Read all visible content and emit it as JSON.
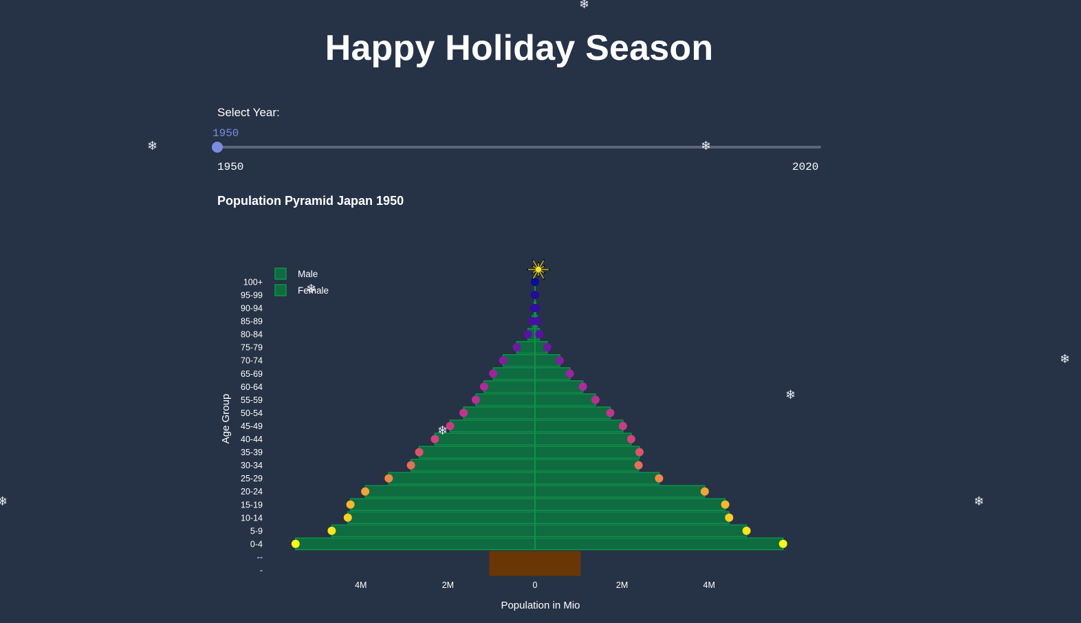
{
  "page": {
    "title": "Happy Holiday Season"
  },
  "slider": {
    "label": "Select Year:",
    "value": "1950",
    "min_label": "1950",
    "max_label": "2020",
    "position_fraction": 0.0
  },
  "chart_heading": "Population Pyramid Japan 1950",
  "chart_data": {
    "type": "bar",
    "orientation": "horizontal",
    "title": "Population Pyramid Japan 1950",
    "xlabel": "Population in Mio",
    "ylabel": "Age Group",
    "xlim": [
      -5.9,
      5.9
    ],
    "x_ticks": [
      {
        "value": -4,
        "label": "4M"
      },
      {
        "value": -2,
        "label": "2M"
      },
      {
        "value": 0,
        "label": "0"
      },
      {
        "value": 2,
        "label": "2M"
      },
      {
        "value": 4,
        "label": "4M"
      }
    ],
    "categories": [
      "-",
      "--",
      "0-4",
      "5-9",
      "10-14",
      "15-19",
      "20-24",
      "25-29",
      "30-34",
      "35-39",
      "40-44",
      "45-49",
      "50-54",
      "55-59",
      "60-64",
      "65-69",
      "70-74",
      "75-79",
      "80-84",
      "85-89",
      "90-94",
      "95-99",
      "100+"
    ],
    "series": [
      {
        "name": "Male",
        "values": [
          null,
          null,
          -5.5,
          -4.67,
          -4.3,
          -4.24,
          -3.9,
          -3.36,
          -2.85,
          -2.66,
          -2.3,
          -1.95,
          -1.64,
          -1.36,
          -1.17,
          -0.96,
          -0.73,
          -0.42,
          -0.16,
          -0.06,
          -0.02,
          0,
          0
        ]
      },
      {
        "name": "Female",
        "values": [
          null,
          null,
          5.7,
          4.86,
          4.46,
          4.37,
          3.9,
          2.85,
          2.38,
          2.4,
          2.21,
          2.02,
          1.73,
          1.39,
          1.1,
          0.8,
          0.57,
          0.28,
          0.1,
          0.05,
          0.02,
          0,
          0
        ]
      }
    ],
    "trunk": {
      "categories": [
        "-",
        "--"
      ],
      "range": [
        -1.05,
        1.05
      ]
    },
    "legend": {
      "position": "top-left",
      "entries": [
        "Male",
        "Female"
      ]
    },
    "colors": {
      "bar": "#0f6b40",
      "bar_border": "#0c9448",
      "trunk": "#6a3606",
      "ornament_low": "#fdfb12",
      "ornament_mid": "#b12a9c",
      "ornament_high": "#0c0c96",
      "star": "#f5e12a"
    }
  },
  "decorations": {
    "snowflake_glyph": "❄"
  }
}
